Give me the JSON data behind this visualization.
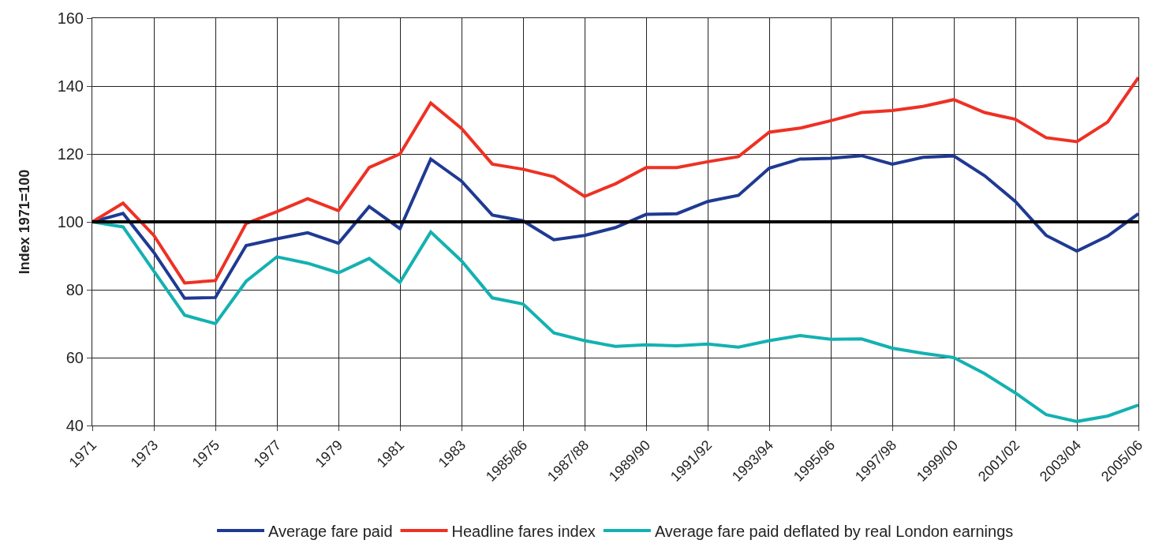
{
  "chart_data": {
    "type": "line",
    "ylabel": "Index 1971=100",
    "categories": [
      "1971",
      null,
      "1973",
      null,
      "1975",
      null,
      "1977",
      null,
      "1979",
      null,
      "1981",
      null,
      "1983",
      null,
      "1985/86",
      null,
      "1987/88",
      null,
      "1989/90",
      null,
      "1991/92",
      null,
      "1993/94",
      null,
      "1995/96",
      null,
      "1997/98",
      null,
      "1999/00",
      null,
      "2001/02",
      null,
      "2003/04",
      null,
      "2005/06"
    ],
    "series": [
      {
        "name": "Average fare paid",
        "color": "#1f3a93",
        "values": [
          100,
          102.5,
          91,
          77.5,
          77.7,
          93,
          95,
          96.8,
          93.7,
          104.5,
          98,
          118.5,
          112,
          102,
          100.3,
          94.7,
          96,
          98.3,
          102.2,
          102.4,
          106,
          107.8,
          115.8,
          118.5,
          118.7,
          119.5,
          117,
          119,
          119.4,
          113.6,
          106,
          96,
          91.4,
          95.8,
          102.4
        ]
      },
      {
        "name": "Headline fares index",
        "color": "#ee3124",
        "values": [
          100,
          105.5,
          96,
          82,
          82.7,
          99.5,
          103,
          106.8,
          103.3,
          116,
          120,
          135,
          127.5,
          117,
          115.5,
          113.3,
          107.5,
          111.2,
          116,
          116,
          117.7,
          119.2,
          126.4,
          127.6,
          129.8,
          132.2,
          132.8,
          134,
          136,
          132.2,
          130.2,
          124.8,
          123.6,
          129.4,
          142.5
        ]
      },
      {
        "name": "Average fare paid deflated by real London earnings",
        "color": "#14b1b1",
        "values": [
          100,
          98.5,
          85.5,
          72.5,
          70,
          82.5,
          89.7,
          87.8,
          85,
          89.2,
          82.2,
          97,
          88.5,
          77.6,
          75.8,
          67.3,
          65,
          63.3,
          63.8,
          63.5,
          64,
          63.1,
          65,
          66.5,
          65.4,
          65.5,
          62.8,
          61.3,
          60,
          55.3,
          49.6,
          43.2,
          41.2,
          42.8,
          46
        ]
      }
    ],
    "ylim": [
      40,
      160
    ],
    "yticks": [
      40,
      60,
      80,
      100,
      120,
      140,
      160
    ],
    "ref_lines": [
      {
        "axis": "y",
        "value": 100,
        "color": "#000000"
      }
    ],
    "grid": true,
    "legend": "bottom",
    "marker": "none",
    "line_style": "solid"
  }
}
